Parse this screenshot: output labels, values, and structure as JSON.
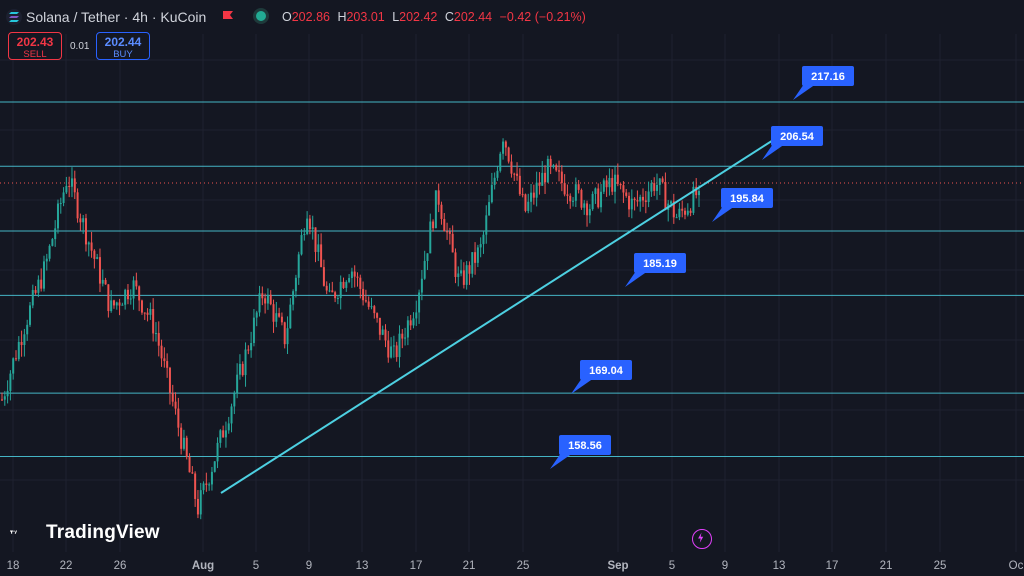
{
  "header": {
    "symbol_title": "Solana / Tether · 4h · KuCoin",
    "ohlc": {
      "o_label": "O",
      "o_value": "202.86",
      "h_label": "H",
      "h_value": "203.01",
      "l_label": "L",
      "l_value": "202.42",
      "c_label": "C",
      "c_value": "202.44",
      "change": "−0.42 (−0.21%)"
    }
  },
  "trade": {
    "sell_price": "202.43",
    "sell_label": "SELL",
    "spread": "0.01",
    "buy_price": "202.44",
    "buy_label": "BUY"
  },
  "branding": {
    "logo_text": "TradingView"
  },
  "colors": {
    "background": "#141722",
    "up": "#26a69a",
    "down": "#ef5350",
    "level_line": "#4dd0e1",
    "label_bg": "#2962ff"
  },
  "icons": {
    "symbol": "solana-icon",
    "flag": "flag-icon",
    "status": "market-status-icon",
    "bolt": "lightning-icon"
  },
  "chart_data": {
    "type": "candlestick",
    "x_tick_labels": [
      "18",
      "22",
      "26",
      "Aug",
      "5",
      "9",
      "13",
      "17",
      "21",
      "25",
      "Sep",
      "5",
      "9",
      "13",
      "17",
      "21",
      "25",
      "Oc"
    ],
    "horizontal_levels": [
      217.16,
      206.54,
      195.84,
      185.19,
      169.04,
      158.56
    ],
    "level_labels": [
      "217.16",
      "206.54",
      "195.84",
      "185.19",
      "169.04",
      "158.56"
    ],
    "current_price": 202.44,
    "trendline": {
      "start_price": 155.5,
      "end_price": 207.5
    },
    "approx_close_path": [
      168,
      180,
      190,
      205,
      194,
      183,
      187,
      180,
      165,
      150,
      161,
      173,
      186,
      178,
      200,
      184,
      190,
      182,
      175,
      184,
      202,
      187,
      193,
      212,
      199,
      206,
      203,
      200,
      204,
      200,
      204,
      198,
      202.44
    ]
  }
}
